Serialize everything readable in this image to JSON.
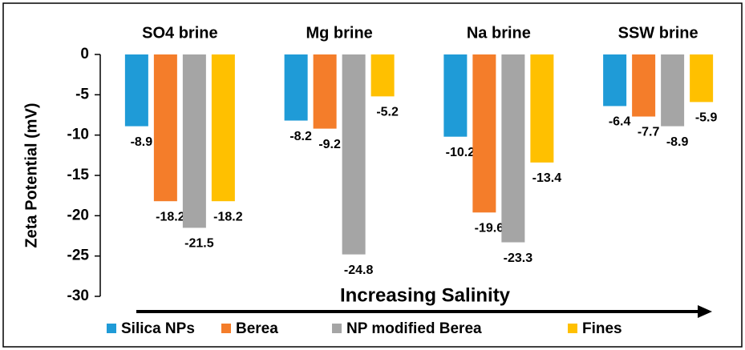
{
  "chart_data": {
    "type": "bar",
    "categories": [
      "SO4 brine",
      "Mg brine",
      "Na brine",
      "SSW brine"
    ],
    "series": [
      {
        "name": "Silica NPs",
        "color": "#1f9bd7",
        "values": [
          -8.9,
          -8.2,
          -10.2,
          -6.4
        ]
      },
      {
        "name": "Berea",
        "color": "#f47d2a",
        "values": [
          -18.2,
          -9.2,
          -19.6,
          -7.7
        ]
      },
      {
        "name": "NP modified Berea",
        "color": "#a5a5a5",
        "values": [
          -21.5,
          -24.8,
          -23.3,
          -8.9
        ]
      },
      {
        "name": "Fines",
        "color": "#ffc000",
        "values": [
          -18.2,
          -5.2,
          -13.4,
          -5.9
        ]
      }
    ],
    "y_label": "Zeta Potential (mV)",
    "annotation": "Increasing Salinity",
    "ylim": [
      -30,
      0
    ],
    "yticks": [
      0,
      -5,
      -10,
      -15,
      -20,
      -25,
      -30
    ],
    "legend": "bottom"
  }
}
